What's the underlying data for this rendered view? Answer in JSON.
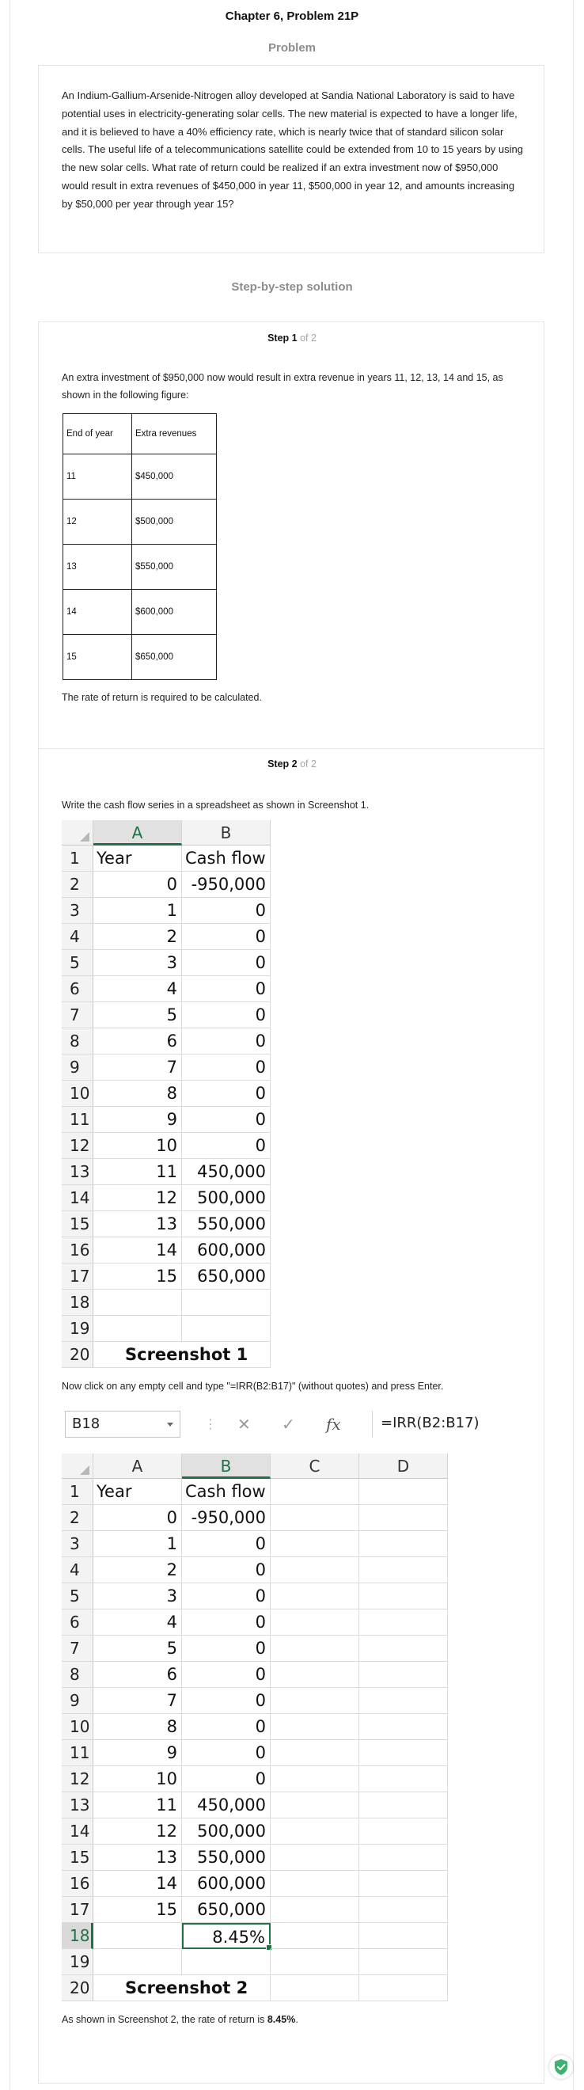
{
  "header": {
    "title": "Chapter 6, Problem 21P"
  },
  "problem": {
    "label": "Problem",
    "text": "An Indium-Gallium-Arsenide-Nitrogen alloy developed at Sandia National Laboratory is said to have potential uses in electricity-generating solar cells. The new material is expected to have a longer life, and it is believed to have a 40% efficiency rate, which is nearly twice that of standard silicon solar cells. The useful life of a telecommunications satellite could be extended from 10 to 15 years by using the new solar cells. What rate of return could be realized if an extra investment now of $950,000 would result in extra revenues of $450,000 in year 11, $500,000 in year 12, and amounts increasing by $50,000 per year through year 15?"
  },
  "solution": {
    "label": "Step-by-step solution"
  },
  "step1": {
    "title": "Step 1",
    "of": "of 2",
    "intro": "An extra investment of $950,000 now would result in extra revenue in years 11, 12, 13, 14 and 15, as shown in the following figure:",
    "table": {
      "headers": [
        "End of year",
        "Extra revenues"
      ],
      "rows": [
        [
          "11",
          "$450,000"
        ],
        [
          "12",
          "$500,000"
        ],
        [
          "13",
          "$550,000"
        ],
        [
          "14",
          "$600,000"
        ],
        [
          "15",
          "$650,000"
        ]
      ]
    },
    "note": "The rate of return is required to be calculated."
  },
  "step2": {
    "title": "Step 2",
    "of": "of 2",
    "intro": "Write the cash flow series in a spreadsheet as shown in Screenshot 1.",
    "instruction": "Now click on any empty cell and type \"=IRR(B2:B17)\" (without quotes) and press Enter.",
    "conclusion_prefix": "As shown in Screenshot 2, the rate of return is ",
    "conclusion_value": "8.45%",
    "conclusion_suffix": "."
  },
  "sheet1": {
    "columns": [
      "A",
      "B"
    ],
    "header": [
      "Year",
      "Cash flow"
    ],
    "data": [
      [
        "0",
        "-950,000"
      ],
      [
        "1",
        "0"
      ],
      [
        "2",
        "0"
      ],
      [
        "3",
        "0"
      ],
      [
        "4",
        "0"
      ],
      [
        "5",
        "0"
      ],
      [
        "6",
        "0"
      ],
      [
        "7",
        "0"
      ],
      [
        "8",
        "0"
      ],
      [
        "9",
        "0"
      ],
      [
        "10",
        "0"
      ],
      [
        "11",
        "450,000"
      ],
      [
        "12",
        "500,000"
      ],
      [
        "13",
        "550,000"
      ],
      [
        "14",
        "600,000"
      ],
      [
        "15",
        "650,000"
      ]
    ],
    "caption": "Screenshot 1"
  },
  "formula_bar": {
    "name_box": "B18",
    "cancel_icon": "✕",
    "enter_icon": "✓",
    "fx_icon": "fx",
    "formula": "=IRR(B2:B17)"
  },
  "sheet2": {
    "columns": [
      "A",
      "B",
      "C",
      "D"
    ],
    "header": [
      "Year",
      "Cash flow"
    ],
    "data": [
      [
        "0",
        "-950,000"
      ],
      [
        "1",
        "0"
      ],
      [
        "2",
        "0"
      ],
      [
        "3",
        "0"
      ],
      [
        "4",
        "0"
      ],
      [
        "5",
        "0"
      ],
      [
        "6",
        "0"
      ],
      [
        "7",
        "0"
      ],
      [
        "8",
        "0"
      ],
      [
        "9",
        "0"
      ],
      [
        "10",
        "0"
      ],
      [
        "11",
        "450,000"
      ],
      [
        "12",
        "500,000"
      ],
      [
        "13",
        "550,000"
      ],
      [
        "14",
        "600,000"
      ],
      [
        "15",
        "650,000"
      ]
    ],
    "result": "8.45%",
    "caption": "Screenshot 2"
  },
  "badge": {
    "icon": "shield-check-icon",
    "color": "#3cb371"
  }
}
